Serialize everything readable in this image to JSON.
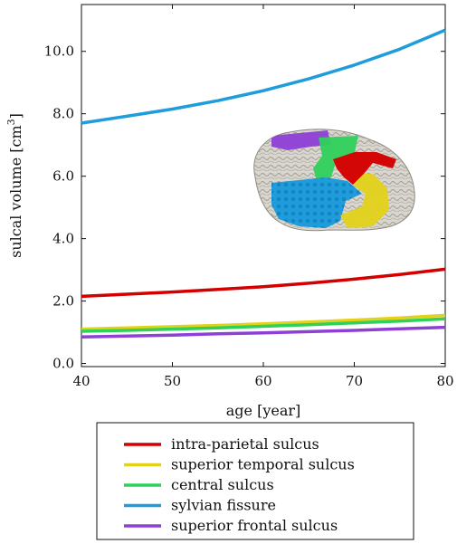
{
  "chart_data": {
    "type": "line",
    "xlabel": "age [year]",
    "ylabel_text": "sulcal volume [cm",
    "ylabel_sup": "3",
    "ylabel_close": "]",
    "xlim": [
      40,
      80
    ],
    "ylim": [
      -0.1,
      11.5
    ],
    "x_ticks": [
      40,
      50,
      60,
      70,
      80
    ],
    "x_tick_labels": [
      "40",
      "50",
      "60",
      "70",
      "80"
    ],
    "y_ticks": [
      0,
      2,
      4,
      6,
      8,
      10
    ],
    "y_tick_labels": [
      "0.0",
      "2.0",
      "4.0",
      "6.0",
      "8.0",
      "10.0"
    ],
    "grid": false,
    "legend_position": "below",
    "x": [
      40,
      45,
      50,
      55,
      60,
      65,
      70,
      75,
      80
    ],
    "series": [
      {
        "name": "intra-parietal sulcus",
        "color": "#d40000",
        "values": [
          2.15,
          2.22,
          2.29,
          2.37,
          2.46,
          2.57,
          2.7,
          2.85,
          3.02
        ]
      },
      {
        "name": "superior temporal sulcus",
        "color": "#e3d21a",
        "values": [
          1.1,
          1.14,
          1.18,
          1.22,
          1.27,
          1.33,
          1.39,
          1.46,
          1.54
        ]
      },
      {
        "name": "central sulcus",
        "color": "#2fd15b",
        "values": [
          1.03,
          1.06,
          1.1,
          1.14,
          1.19,
          1.24,
          1.3,
          1.36,
          1.43
        ]
      },
      {
        "name": "sylvian fissure",
        "color": "#1f9cdb",
        "values": [
          7.7,
          7.92,
          8.15,
          8.42,
          8.74,
          9.12,
          9.56,
          10.07,
          10.68
        ]
      },
      {
        "name": "superior frontal sulcus",
        "color": "#8e3fd6",
        "values": [
          0.85,
          0.88,
          0.91,
          0.95,
          0.98,
          1.02,
          1.06,
          1.11,
          1.16
        ]
      }
    ]
  },
  "inset": {
    "subject": "brain-render",
    "region_colors": {
      "cortex": "#d9d6cf",
      "intra_parietal": "#d40000",
      "superior_temporal": "#e3d21a",
      "central": "#2fd15b",
      "sylvian": "#1f9cdb",
      "superior_frontal": "#8e3fd6"
    }
  }
}
